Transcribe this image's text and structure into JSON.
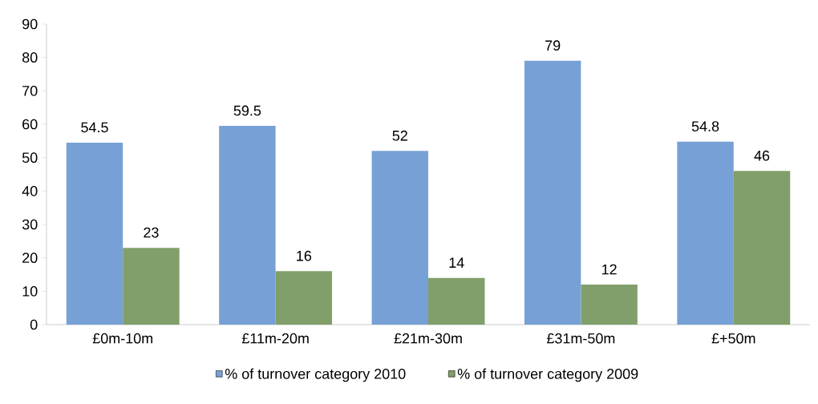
{
  "chart_data": {
    "type": "bar",
    "categories": [
      "£0m-10m",
      "£11m-20m",
      "£21m-30m",
      "£31m-50m",
      "£+50m"
    ],
    "series": [
      {
        "name": "% of turnover category 2010",
        "color": "#77a1d6",
        "values": [
          54.5,
          59.5,
          52,
          79,
          54.8
        ]
      },
      {
        "name": "% of turnover category 2009",
        "color": "#819f6a",
        "values": [
          23,
          16,
          14,
          12,
          46
        ]
      }
    ],
    "ylim": [
      0,
      90
    ],
    "yticks": [
      0,
      10,
      20,
      30,
      40,
      50,
      60,
      70,
      80,
      90
    ],
    "data_labels": true,
    "legend": "bottom",
    "grid": false
  }
}
